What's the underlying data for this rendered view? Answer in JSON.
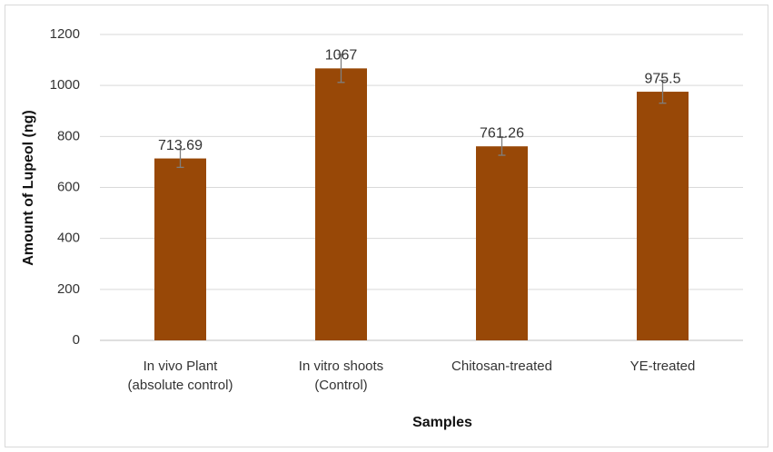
{
  "chart_data": {
    "type": "bar",
    "y_label": "Amount of Lupeol (ng)",
    "x_label": "Samples",
    "categories": [
      [
        "In vivo Plant",
        "(absolute control)"
      ],
      [
        "In vitro shoots",
        "(Control)"
      ],
      [
        "Chitosan-treated"
      ],
      [
        "YE-treated"
      ]
    ],
    "values": [
      713.69,
      1067,
      761.26,
      975.5
    ],
    "errors": [
      35,
      55,
      35,
      45
    ],
    "color": "#984807",
    "ylim": [
      0,
      1200
    ],
    "yticks": [
      0,
      200,
      400,
      600,
      800,
      1000,
      1200
    ],
    "grid": true
  }
}
